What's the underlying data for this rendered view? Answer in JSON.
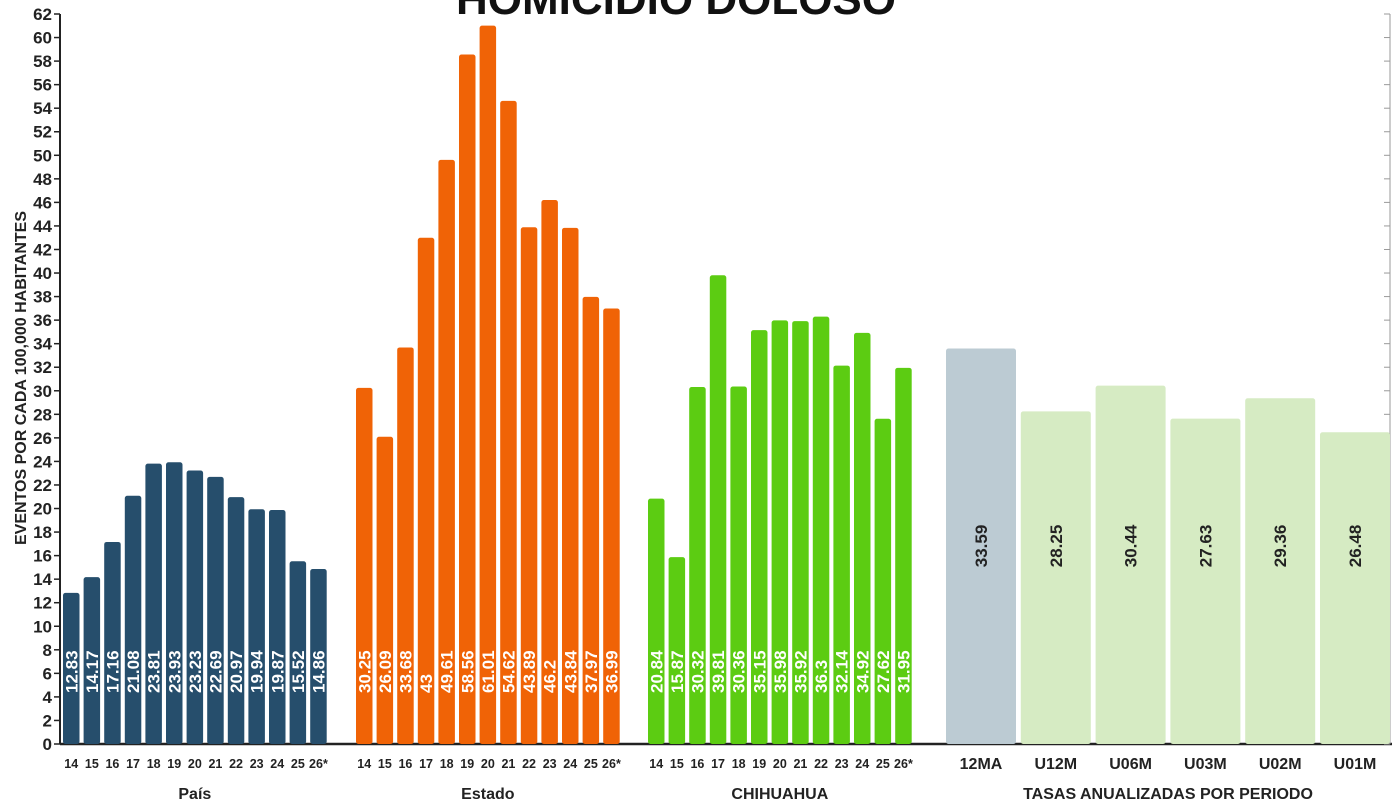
{
  "chart_data": {
    "type": "bar",
    "title": "HOMICIDIO DOLOSO",
    "ylabel": "EVENTOS POR CADA 100,000 HABITANTES",
    "ylim": [
      0,
      62
    ],
    "yticks": [
      0,
      2,
      4,
      6,
      8,
      10,
      12,
      14,
      16,
      18,
      20,
      22,
      24,
      26,
      28,
      30,
      32,
      34,
      36,
      38,
      40,
      42,
      44,
      46,
      48,
      50,
      52,
      54,
      56,
      58,
      60,
      62
    ],
    "grid": false,
    "groups": [
      {
        "name": "País",
        "color": "#264e6c",
        "categories": [
          "14",
          "15",
          "16",
          "17",
          "18",
          "19",
          "20",
          "21",
          "22",
          "23",
          "24",
          "25",
          "26*"
        ],
        "values": [
          12.83,
          14.17,
          17.16,
          21.08,
          23.81,
          23.93,
          23.23,
          22.69,
          20.97,
          19.94,
          19.87,
          15.52,
          14.86
        ],
        "labels": [
          "12.83",
          "14.17",
          "17.16",
          "21.08",
          "23.81",
          "23.93",
          "23.23",
          "22.69",
          "20.97",
          "19.94",
          "19.87",
          "15.52",
          "14.86"
        ]
      },
      {
        "name": "Estado",
        "color": "#f06306",
        "categories": [
          "14",
          "15",
          "16",
          "17",
          "18",
          "19",
          "20",
          "21",
          "22",
          "23",
          "24",
          "25",
          "26*"
        ],
        "values": [
          30.25,
          26.09,
          33.68,
          43,
          49.61,
          58.56,
          61.01,
          54.62,
          43.89,
          46.2,
          43.84,
          37.97,
          36.99
        ],
        "labels": [
          "30.25",
          "26.09",
          "33.68",
          "43",
          "49.61",
          "58.56",
          "61.01",
          "54.62",
          "43.89",
          "46.2",
          "43.84",
          "37.97",
          "36.99"
        ]
      },
      {
        "name": "CHIHUAHUA",
        "color": "#5ccc12",
        "categories": [
          "14",
          "15",
          "16",
          "17",
          "18",
          "19",
          "20",
          "21",
          "22",
          "23",
          "24",
          "25",
          "26*"
        ],
        "values": [
          20.84,
          15.87,
          30.32,
          39.81,
          30.36,
          35.15,
          35.98,
          35.92,
          36.3,
          32.14,
          34.92,
          27.62,
          31.95
        ],
        "labels": [
          "20.84",
          "15.87",
          "30.32",
          "39.81",
          "30.36",
          "35.15",
          "35.98",
          "35.92",
          "36.3",
          "32.14",
          "34.92",
          "27.62",
          "31.95"
        ]
      },
      {
        "name": "TASAS ANUALIZADAS POR PERIODO",
        "color": "#d6ebc3",
        "highlight_color": "#bccbd3",
        "categories": [
          "12MA",
          "U12M",
          "U06M",
          "U03M",
          "U02M",
          "U01M"
        ],
        "values": [
          33.59,
          28.25,
          30.44,
          27.63,
          29.36,
          26.48
        ],
        "labels": [
          "33.59",
          "28.25",
          "30.44",
          "27.63",
          "29.36",
          "26.48"
        ]
      }
    ]
  }
}
